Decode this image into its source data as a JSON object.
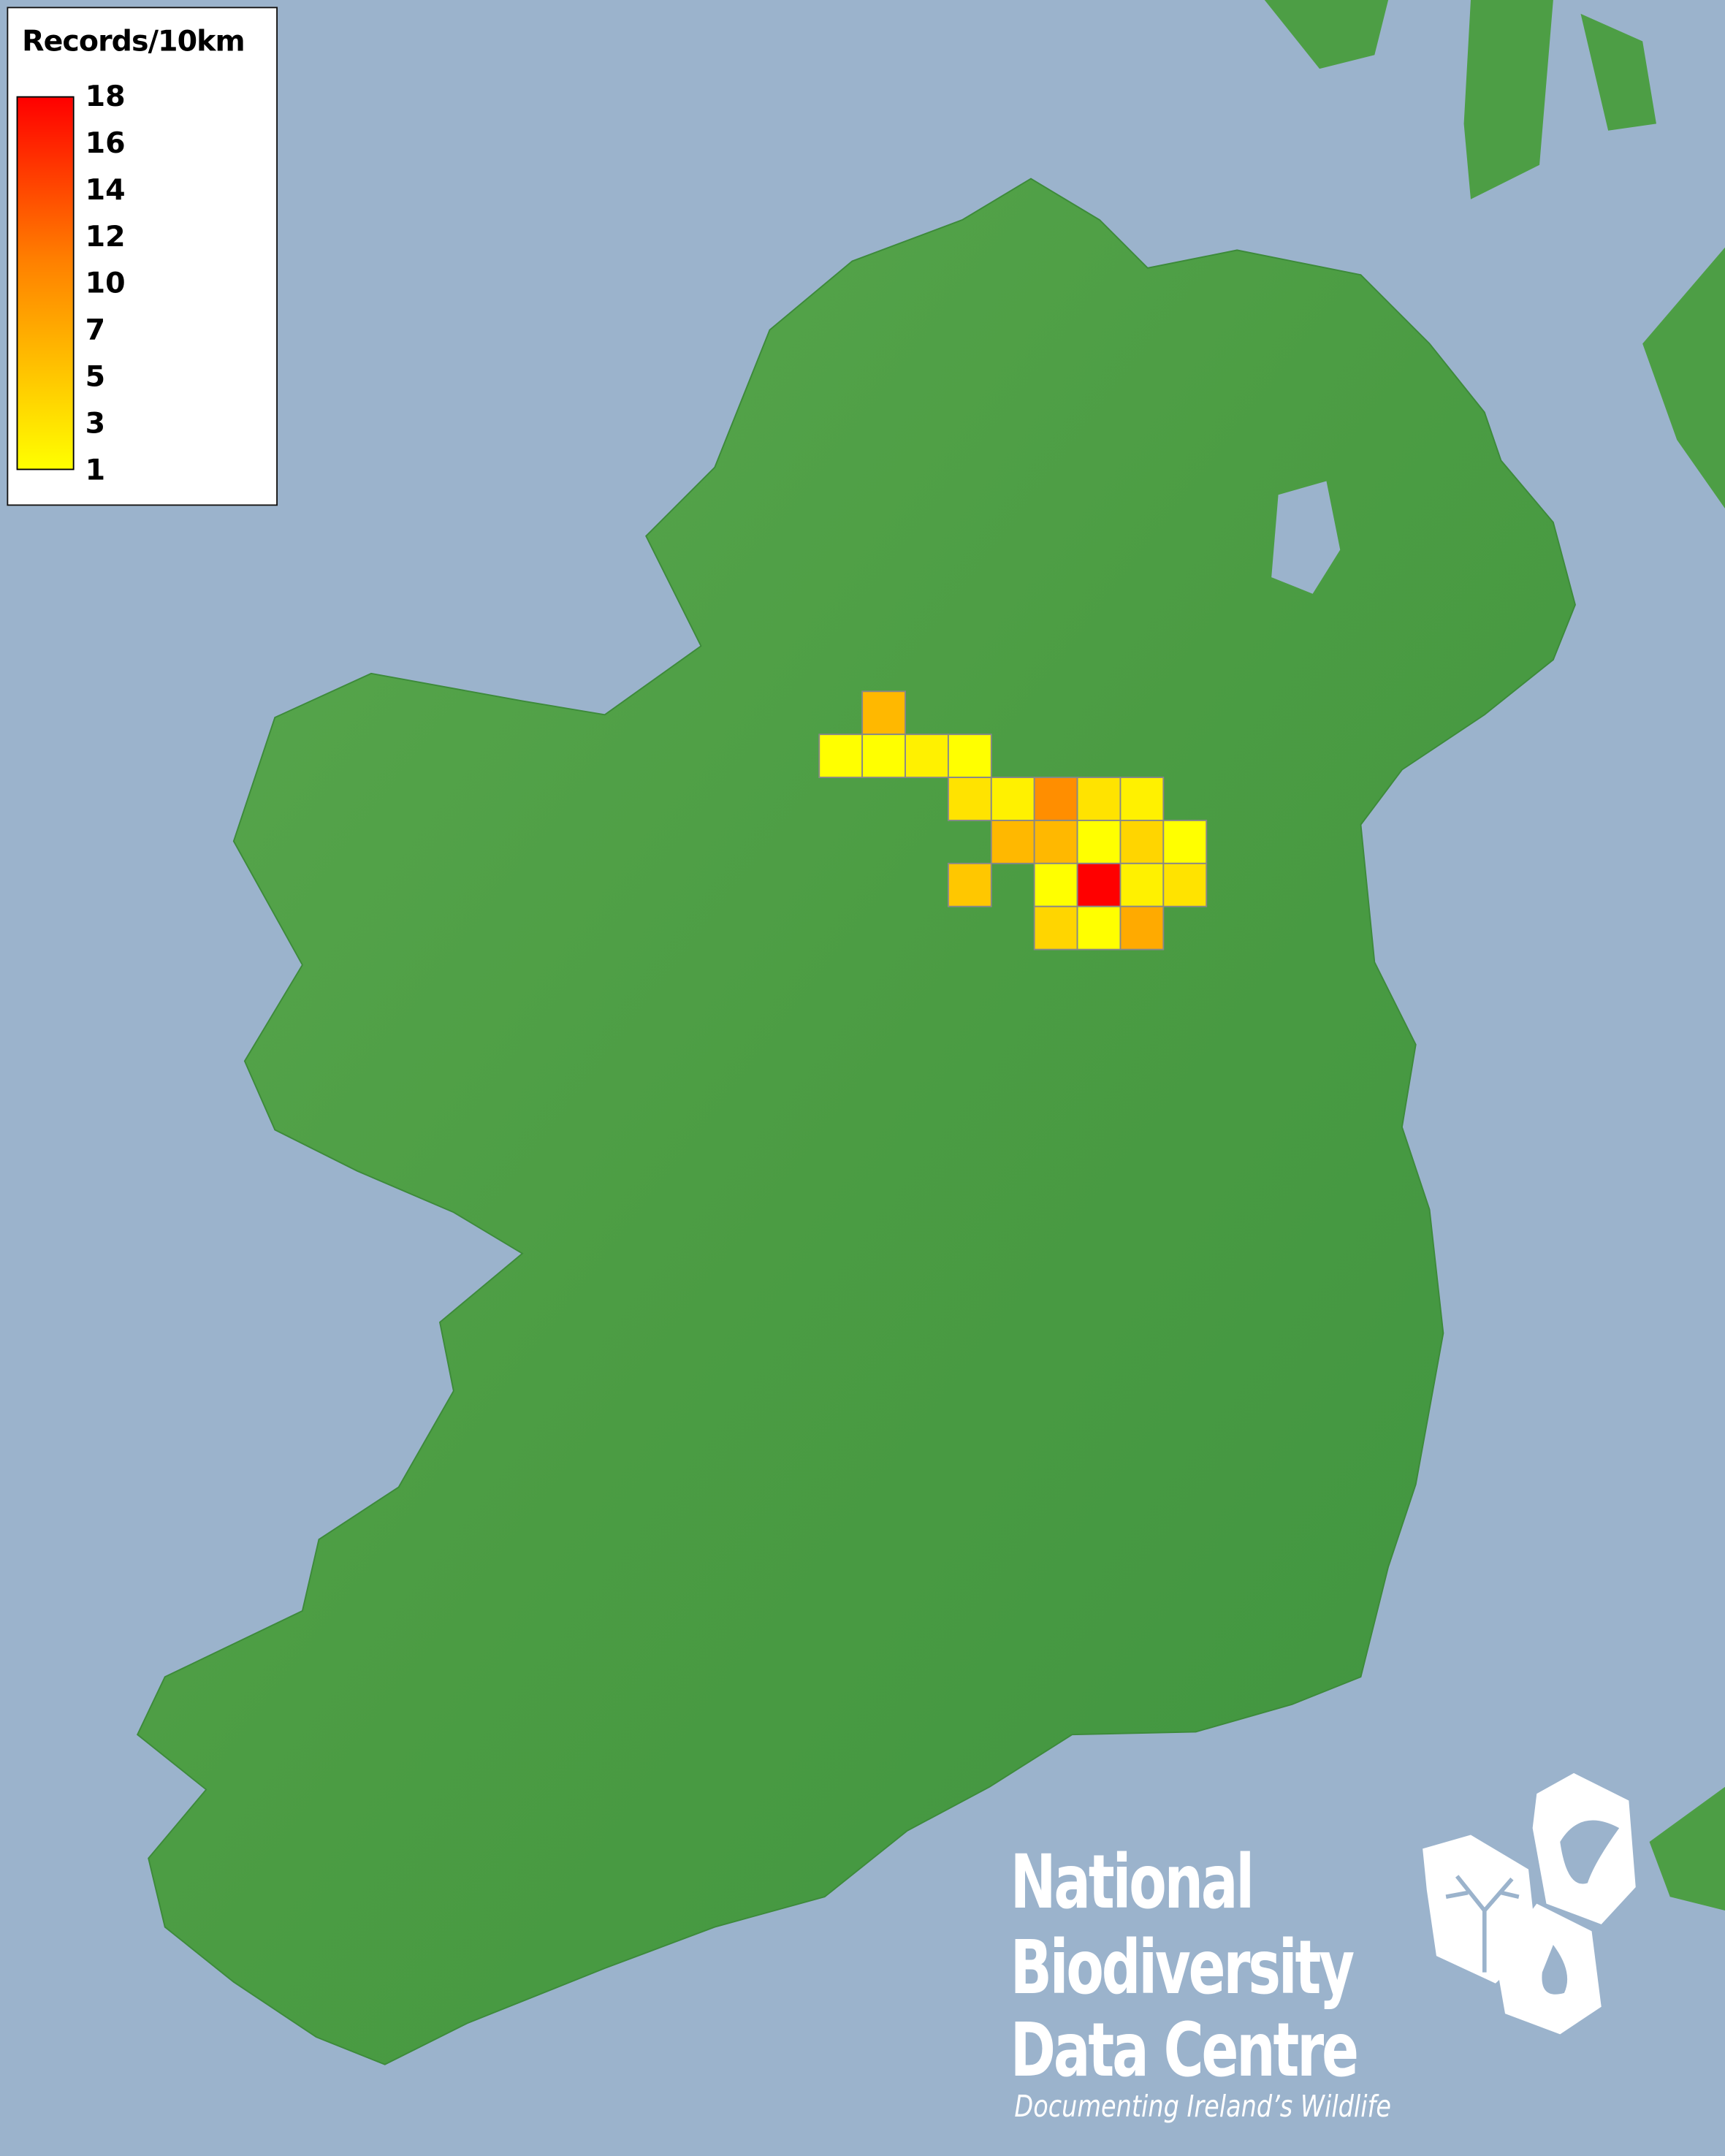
{
  "legend": {
    "title": "Records/10km",
    "ticks": [
      "18",
      "16",
      "14",
      "12",
      "10",
      "7",
      "5",
      "3",
      "1"
    ]
  },
  "colors": {
    "sea": "#9bb3cc",
    "land": "#4d9e45",
    "low": "#ffff00",
    "mid": "#ff8000",
    "high": "#ff0000",
    "cell_border": "#888888"
  },
  "logo": {
    "line1": "National",
    "line2": "Biodiversity",
    "line3": "Data Centre",
    "tagline": "Documenting Ireland’s Wildlife",
    "icons": [
      "tree-icon",
      "butterfly-icon",
      "seahorse-icon"
    ]
  },
  "chart_data": {
    "type": "heatmap",
    "title": "Records/10km",
    "colorbar_range": [
      1,
      18
    ],
    "colorbar_ticks": [
      1,
      3,
      5,
      7,
      10,
      12,
      14,
      16,
      18
    ],
    "grid_values": [
      [
        null,
        6,
        null,
        null,
        null,
        null,
        null,
        null,
        null
      ],
      [
        1,
        1,
        2,
        1,
        null,
        null,
        null,
        null,
        null
      ],
      [
        null,
        null,
        null,
        3,
        2,
        9,
        3,
        2,
        null
      ],
      [
        null,
        null,
        null,
        null,
        6,
        6,
        1,
        4,
        1
      ],
      [
        null,
        null,
        null,
        5,
        null,
        1,
        18,
        2,
        3
      ],
      [
        null,
        null,
        null,
        null,
        null,
        4,
        1,
        7,
        null
      ]
    ]
  }
}
